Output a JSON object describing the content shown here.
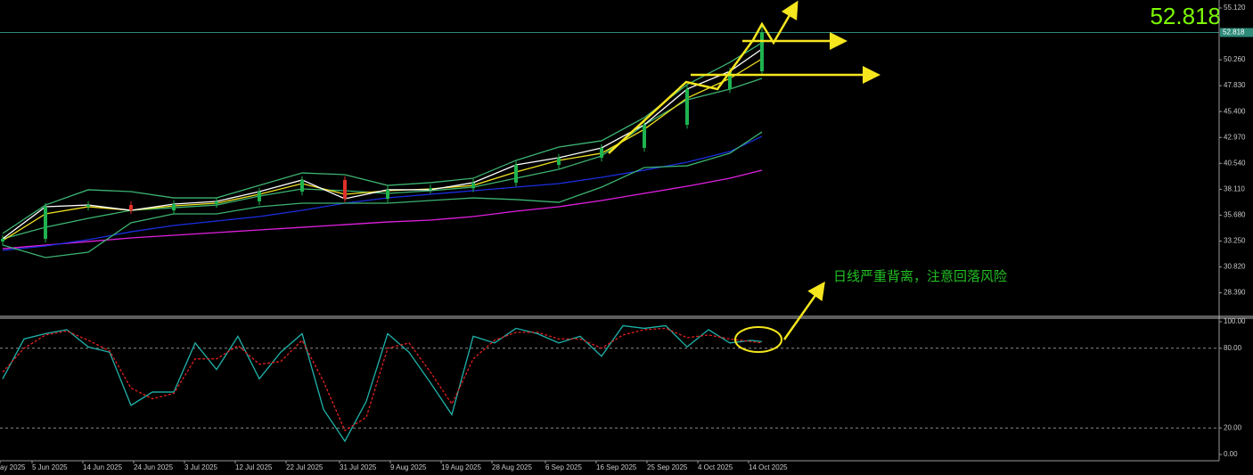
{
  "chart_data": [
    {
      "type": "candlestick",
      "x": [
        0,
        8,
        16,
        24,
        32,
        40,
        48,
        56,
        64,
        72,
        80,
        88,
        96,
        104,
        112,
        120,
        128,
        136,
        142
      ],
      "candles": {
        "open": [
          33.2,
          33.46,
          36.47,
          36.63,
          36.13,
          36.72,
          36.97,
          37.89,
          38.98,
          37.22,
          38.06,
          38.2,
          38.73,
          40.4,
          41.07,
          41.99,
          44.16,
          47.51,
          49.18
        ],
        "high": [
          33.81,
          36.82,
          36.98,
          36.98,
          37.07,
          37.32,
          38.24,
          39.33,
          39.33,
          38.41,
          38.55,
          39.08,
          40.75,
          41.42,
          42.34,
          44.51,
          47.86,
          49.53,
          53.6
        ],
        "low": [
          32.85,
          33.11,
          36.12,
          35.78,
          35.78,
          36.37,
          36.62,
          37.54,
          36.87,
          36.87,
          37.71,
          37.85,
          38.38,
          40.05,
          40.72,
          41.64,
          43.81,
          47.16,
          48.83
        ],
        "close": [
          33.46,
          36.47,
          36.63,
          36.13,
          36.72,
          36.97,
          37.89,
          38.98,
          37.22,
          38.06,
          38.2,
          38.73,
          40.4,
          41.07,
          41.99,
          44.16,
          47.51,
          49.18,
          52.818
        ],
        "up_color": "#1fb34f",
        "down_color": "#e0302a"
      },
      "series": [
        {
          "color": "#e020e0",
          "values": [
            32.53,
            32.87,
            33.2,
            33.54,
            33.79,
            34.04,
            34.29,
            34.54,
            34.79,
            35.04,
            35.21,
            35.55,
            36.05,
            36.47,
            37.05,
            37.72,
            38.39,
            39.14,
            39.9
          ]
        },
        {
          "color": "#1a2ee0",
          "values": [
            32.37,
            32.79,
            33.37,
            34.12,
            34.71,
            35.13,
            35.55,
            36.13,
            36.8,
            37.3,
            37.64,
            37.97,
            38.31,
            38.64,
            39.23,
            39.9,
            40.65,
            41.65,
            43.07
          ]
        },
        {
          "color": "#3cb371",
          "values": [
            33.96,
            36.63,
            38.06,
            37.89,
            37.3,
            37.3,
            38.47,
            39.64,
            39.48,
            38.47,
            38.73,
            39.14,
            40.82,
            42.07,
            42.66,
            44.83,
            47.93,
            50.02,
            51.86
          ]
        },
        {
          "color": "#3cb371",
          "values": [
            33.46,
            34.54,
            35.38,
            36.13,
            36.38,
            36.63,
            37.47,
            38.14,
            37.97,
            37.72,
            37.97,
            38.31,
            39.14,
            39.98,
            41.23,
            44.16,
            46.5,
            47.51,
            48.51
          ]
        },
        {
          "color": "#3cb371",
          "values": [
            32.87,
            31.7,
            32.2,
            34.96,
            35.8,
            35.8,
            36.47,
            36.8,
            36.8,
            36.8,
            37.05,
            37.3,
            37.14,
            36.88,
            38.31,
            40.15,
            40.31,
            41.49,
            43.49
          ]
        },
        {
          "color": "#f0e020",
          "values": [
            33.29,
            35.8,
            36.47,
            36.13,
            36.55,
            36.8,
            37.64,
            38.64,
            37.64,
            37.97,
            38.14,
            38.47,
            39.73,
            40.82,
            41.49,
            43.74,
            46.67,
            48.51,
            50.35
          ]
        },
        {
          "color": "#ffffff",
          "values": [
            33.46,
            36.47,
            36.63,
            36.13,
            36.72,
            36.97,
            37.89,
            38.98,
            37.22,
            38.06,
            38.06,
            38.73,
            40.4,
            41.07,
            41.99,
            44.16,
            47.51,
            49.18,
            51.27
          ]
        }
      ],
      "last_price": 52.818,
      "last_price_color": "#7cfc00",
      "annotation": "日线严重背离，注意回落风险",
      "xlim": [
        -0.5,
        227.5
      ],
      "ylim": [
        26.18,
        55.87
      ],
      "yticks": [
        {
          "value": 55.12,
          "label": "55.120"
        },
        {
          "value": 50.26,
          "label": "50.260"
        },
        {
          "value": 47.83,
          "label": "47.830"
        },
        {
          "value": 45.4,
          "label": "45.400"
        },
        {
          "value": 42.97,
          "label": "42.970"
        },
        {
          "value": 40.54,
          "label": "40.540"
        },
        {
          "value": 38.11,
          "label": "38.110"
        },
        {
          "value": 35.68,
          "label": "35.680"
        },
        {
          "value": 33.25,
          "label": "33.250"
        },
        {
          "value": 30.82,
          "label": "30.820"
        },
        {
          "value": 28.39,
          "label": "28.390"
        }
      ]
    },
    {
      "type": "stochastic",
      "x": [
        0,
        4,
        8,
        12,
        16,
        20,
        24,
        28,
        32,
        36,
        40,
        44,
        48,
        52,
        56,
        60,
        64,
        68,
        72,
        76,
        80,
        84,
        88,
        92,
        96,
        100,
        104,
        108,
        112,
        116,
        120,
        124,
        128,
        132,
        136,
        140,
        142
      ],
      "series": [
        {
          "color": "#20b2aa",
          "values": [
            57,
            87,
            91,
            94,
            81,
            77,
            37,
            47,
            47,
            84,
            64,
            89,
            57,
            77,
            91,
            34,
            10,
            40,
            91,
            77,
            54,
            30,
            89,
            84,
            95,
            91,
            84,
            89,
            74,
            97,
            95,
            97,
            81,
            94,
            84,
            86,
            85
          ]
        },
        {
          "color": "#e02020",
          "dashed": true,
          "values": [
            62,
            80,
            90,
            93,
            86,
            78,
            50,
            42,
            46,
            72,
            72,
            82,
            68,
            70,
            86,
            55,
            18,
            28,
            80,
            84,
            62,
            38,
            72,
            86,
            92,
            92,
            87,
            87,
            80,
            90,
            94,
            95,
            88,
            90,
            87,
            85,
            84
          ]
        }
      ],
      "dashed_levels": [
        80,
        20
      ],
      "xlim": [
        -0.5,
        227.5
      ],
      "ylim": [
        -4.7,
        102
      ],
      "yticks": [
        {
          "value": 100,
          "label": "100.00"
        },
        {
          "value": 80,
          "label": "80.00"
        },
        {
          "value": 20,
          "label": "20.00"
        },
        {
          "value": 0,
          "label": "0.00"
        }
      ],
      "xticks": [
        {
          "value": -0.5,
          "label": "ay 2025"
        },
        {
          "value": 5.5,
          "label": "5 Jun 2025"
        },
        {
          "value": 15,
          "label": "14 Jun 2025"
        },
        {
          "value": 24.5,
          "label": "24 Jun 2025"
        },
        {
          "value": 34,
          "label": "3 Jul 2025"
        },
        {
          "value": 43.5,
          "label": "12 Jul 2025"
        },
        {
          "value": 53,
          "label": "22 Jul 2025"
        },
        {
          "value": 63,
          "label": "31 Jul 2025"
        },
        {
          "value": 72.5,
          "label": "9 Aug 2025"
        },
        {
          "value": 82,
          "label": "19 Aug 2025"
        },
        {
          "value": 91.5,
          "label": "28 Aug 2025"
        },
        {
          "value": 101.5,
          "label": "6 Sep 2025"
        },
        {
          "value": 111,
          "label": "16 Sep 2025"
        },
        {
          "value": 120.5,
          "label": "25 Sep 2025"
        },
        {
          "value": 130,
          "label": "4 Oct 2025"
        },
        {
          "value": 139.5,
          "label": "14 Oct 2025"
        }
      ]
    }
  ]
}
